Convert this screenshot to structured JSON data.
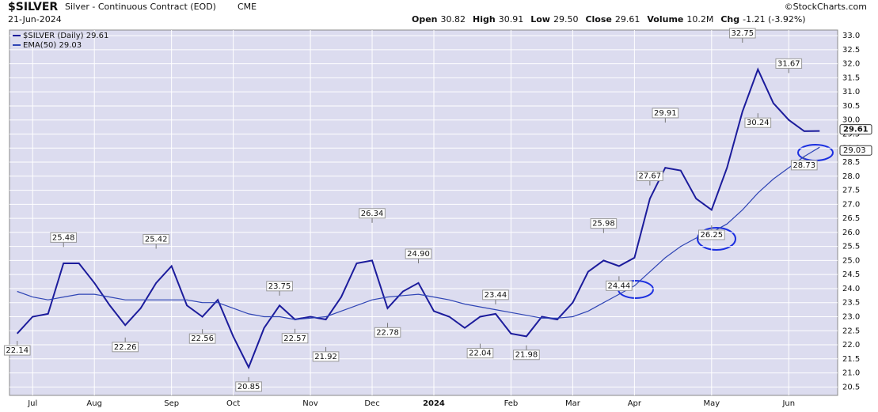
{
  "header": {
    "symbol": "$SILVER",
    "name": "Silver - Continuous Contract (EOD)",
    "exchange": "CME",
    "date": "21-Jun-2024",
    "source": "©StockCharts.com",
    "quote": [
      {
        "label": "Open",
        "value": "30.82"
      },
      {
        "label": "High",
        "value": "30.91"
      },
      {
        "label": "Low",
        "value": "29.50"
      },
      {
        "label": "Close",
        "value": "29.61"
      },
      {
        "label": "Volume",
        "value": "10.2M"
      },
      {
        "label": "Chg",
        "value": "-1.21 (-3.92%)"
      }
    ]
  },
  "chart_data": {
    "type": "line",
    "categories": [
      null,
      "Jul",
      null,
      null,
      null,
      "Aug",
      null,
      null,
      null,
      null,
      "Sep",
      null,
      null,
      null,
      "Oct",
      null,
      null,
      null,
      null,
      "Nov",
      null,
      null,
      null,
      "Dec",
      null,
      null,
      null,
      "2024",
      null,
      null,
      null,
      null,
      "Feb",
      null,
      null,
      null,
      "Mar",
      null,
      null,
      null,
      "Apr",
      null,
      null,
      null,
      null,
      "May",
      null,
      null,
      null,
      null,
      "Jun",
      null,
      null
    ],
    "series": [
      {
        "name": "$SILVER (Daily) 29.61",
        "color": "#1c1c9c",
        "values": [
          22.4,
          23.0,
          23.1,
          24.9,
          24.9,
          24.2,
          23.4,
          22.7,
          23.3,
          24.2,
          24.8,
          23.4,
          23.0,
          23.6,
          22.3,
          21.2,
          22.6,
          23.4,
          22.9,
          23.0,
          22.9,
          23.7,
          24.9,
          25.0,
          23.3,
          23.9,
          24.2,
          23.2,
          23.0,
          22.6,
          23.0,
          23.1,
          22.4,
          22.3,
          23.0,
          22.9,
          23.5,
          24.6,
          25.0,
          24.8,
          25.1,
          27.2,
          28.3,
          28.2,
          27.2,
          26.8,
          28.3,
          30.3,
          31.8,
          30.6,
          30.0,
          29.6,
          29.61
        ]
      },
      {
        "name": "EMA(50) 29.03",
        "color": "#2f45b5",
        "values": [
          23.9,
          23.7,
          23.6,
          23.7,
          23.8,
          23.8,
          23.7,
          23.6,
          23.6,
          23.6,
          23.6,
          23.6,
          23.5,
          23.5,
          23.3,
          23.1,
          23.0,
          23.0,
          22.9,
          22.95,
          23.0,
          23.2,
          23.4,
          23.6,
          23.7,
          23.75,
          23.8,
          23.7,
          23.6,
          23.45,
          23.35,
          23.25,
          23.15,
          23.05,
          22.95,
          22.95,
          23.0,
          23.2,
          23.5,
          23.8,
          24.1,
          24.6,
          25.1,
          25.5,
          25.8,
          26.0,
          26.3,
          26.8,
          27.4,
          27.9,
          28.3,
          28.7,
          29.03
        ]
      }
    ],
    "extremes": [
      22.14,
      null,
      null,
      25.48,
      null,
      null,
      null,
      22.26,
      null,
      25.42,
      null,
      null,
      22.56,
      null,
      null,
      20.85,
      null,
      23.75,
      22.57,
      null,
      21.92,
      null,
      null,
      26.34,
      22.78,
      null,
      {
        "value": 24.9,
        "label": "24.90"
      },
      null,
      null,
      null,
      22.04,
      23.44,
      null,
      21.98,
      null,
      null,
      null,
      null,
      25.98,
      24.44,
      null,
      27.67,
      29.91,
      null,
      null,
      26.25,
      null,
      32.75,
      30.24,
      null,
      31.67,
      28.73,
      null
    ],
    "last_labels": [
      "29.61",
      "29.03"
    ],
    "ylim": [
      20.2,
      33.2
    ],
    "yticks": [
      20.5,
      {
        "value": 21,
        "label": "21.0"
      },
      21.5,
      {
        "value": 22,
        "label": "22.0"
      },
      22.5,
      {
        "value": 23,
        "label": "23.0"
      },
      23.5,
      {
        "value": 24,
        "label": "24.0"
      },
      24.5,
      {
        "value": 25,
        "label": "25.0"
      },
      25.5,
      {
        "value": 26,
        "label": "26.0"
      },
      26.5,
      {
        "value": 27,
        "label": "27.0"
      },
      27.5,
      {
        "value": 28,
        "label": "28.0"
      },
      28.5,
      {
        "value": 29,
        "label": "29.0"
      },
      29.5,
      {
        "value": 30,
        "label": "30.0"
      },
      30.5,
      {
        "value": 31,
        "label": "31.0"
      },
      31.5,
      {
        "value": 32,
        "label": "32.0"
      },
      32.5,
      {
        "value": 33,
        "label": "33.0"
      }
    ],
    "grid": true
  }
}
